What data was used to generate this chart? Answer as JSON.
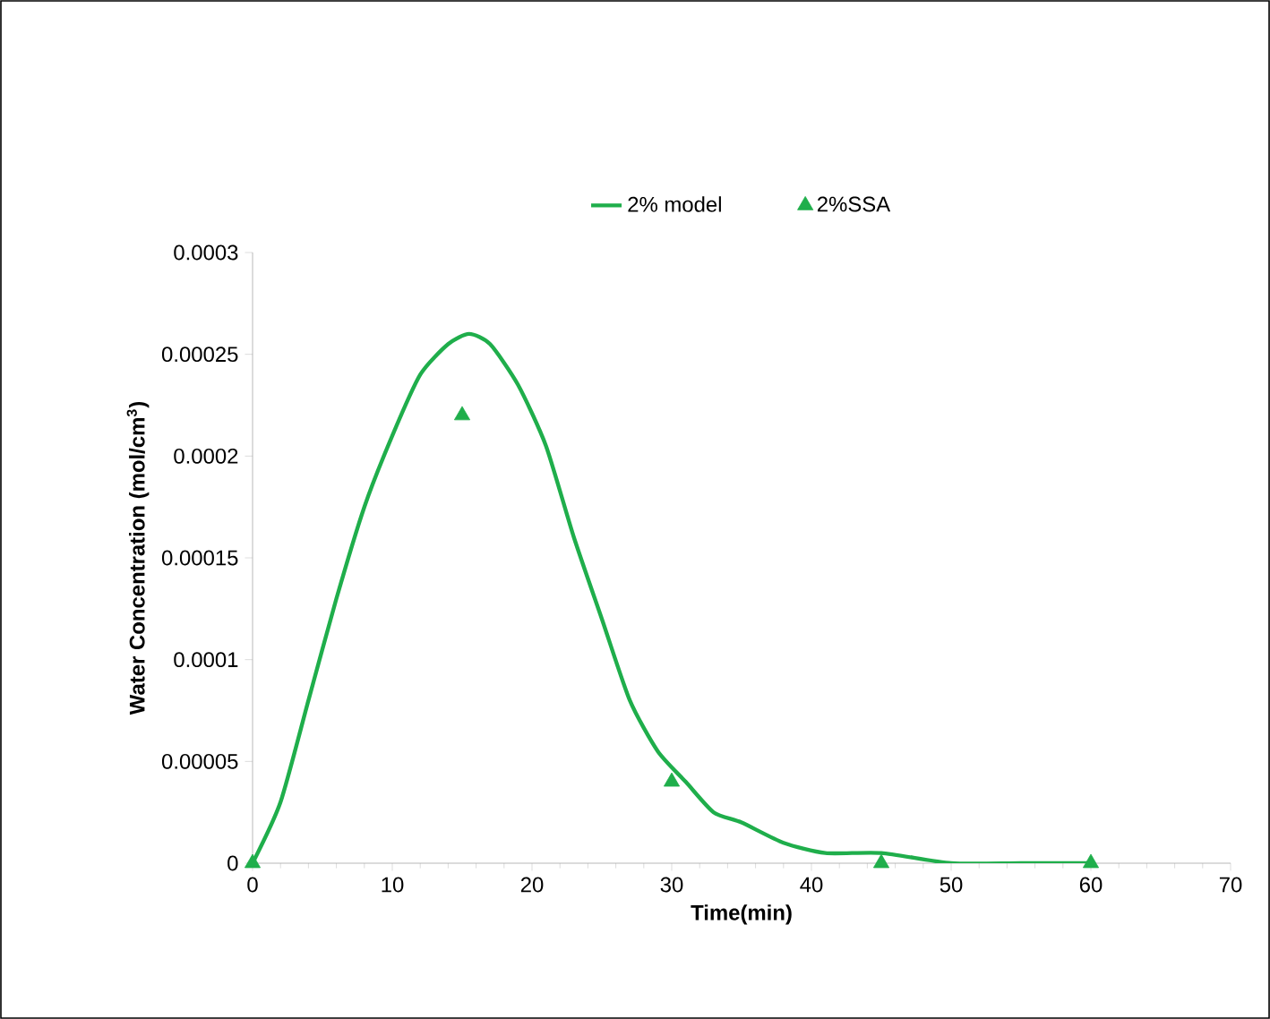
{
  "chart_data": {
    "type": "line",
    "xlabel": "Time(min)",
    "ylabel": "Water Concentration (mol/cm$^{3}$)",
    "xlim": [
      0,
      70
    ],
    "xticks": [
      0,
      10,
      20,
      30,
      40,
      50,
      60,
      70
    ],
    "ylim": [
      0,
      0.0003
    ],
    "yticks": [
      0,
      {
        "value": 5e-05,
        "label": "0.00005"
      },
      {
        "value": 0.0001,
        "label": "0.0001"
      },
      {
        "value": 0.00015,
        "label": "0.00015"
      },
      {
        "value": 0.0002,
        "label": "0.0002"
      },
      {
        "value": 0.00025,
        "label": "0.00025"
      },
      {
        "value": 0.0003,
        "label": "0.0003"
      }
    ],
    "legend": "top",
    "grid": false,
    "series": [
      {
        "name": "2% model",
        "marker": "none",
        "color": "#1fae4b",
        "x": [
          0,
          2,
          4,
          6,
          8,
          10,
          12,
          14,
          15.5,
          17,
          19,
          21,
          23,
          25,
          27,
          29,
          31,
          33,
          35,
          38,
          41,
          45,
          50,
          55,
          60
        ],
        "values": [
          0,
          3e-05,
          8e-05,
          0.00013,
          0.000175,
          0.00021,
          0.00024,
          0.000255,
          0.00026,
          0.000255,
          0.000235,
          0.000205,
          0.00016,
          0.00012,
          8e-05,
          5.5e-05,
          4e-05,
          2.5e-05,
          2e-05,
          1e-05,
          5e-06,
          5e-06,
          0,
          0,
          0
        ]
      },
      {
        "name": "2%SSA",
        "type": "scatter",
        "marker": "triangle",
        "color": "#1fae4b",
        "x": [
          0,
          15,
          30,
          45,
          60
        ],
        "values": [
          0,
          0.00022,
          4e-05,
          0,
          0
        ]
      }
    ]
  }
}
